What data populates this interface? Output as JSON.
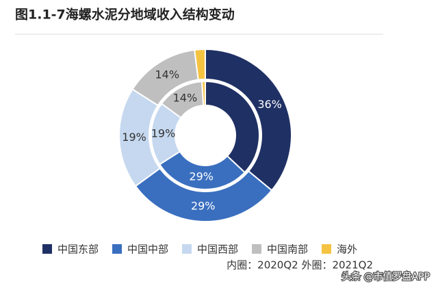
{
  "chart_data": {
    "type": "pie",
    "title": "图1.1-7海螺水泥分地域收入结构变动",
    "categories": [
      "中国东部",
      "中国中部",
      "中国西部",
      "中国南部",
      "海外"
    ],
    "colors": [
      "#1f3064",
      "#3a6fbf",
      "#c5d8ef",
      "#bfbfbf",
      "#f5c342"
    ],
    "label_colors": [
      "#ffffff",
      "#ffffff",
      "#333333",
      "#333333",
      "#333333"
    ],
    "rings": [
      {
        "values": [
          37,
          29,
          19,
          14,
          1
        ],
        "value_labels": [
          null,
          "29%",
          "19%",
          "14%",
          null
        ]
      },
      {
        "values": [
          36,
          29,
          19,
          14,
          2
        ],
        "value_labels": [
          "36%",
          "29%",
          "19%",
          "14%",
          null
        ]
      }
    ],
    "caption": "内圈：2020Q2  外圈：2021Q2",
    "watermark": "头条 @市值罗盘APP"
  }
}
